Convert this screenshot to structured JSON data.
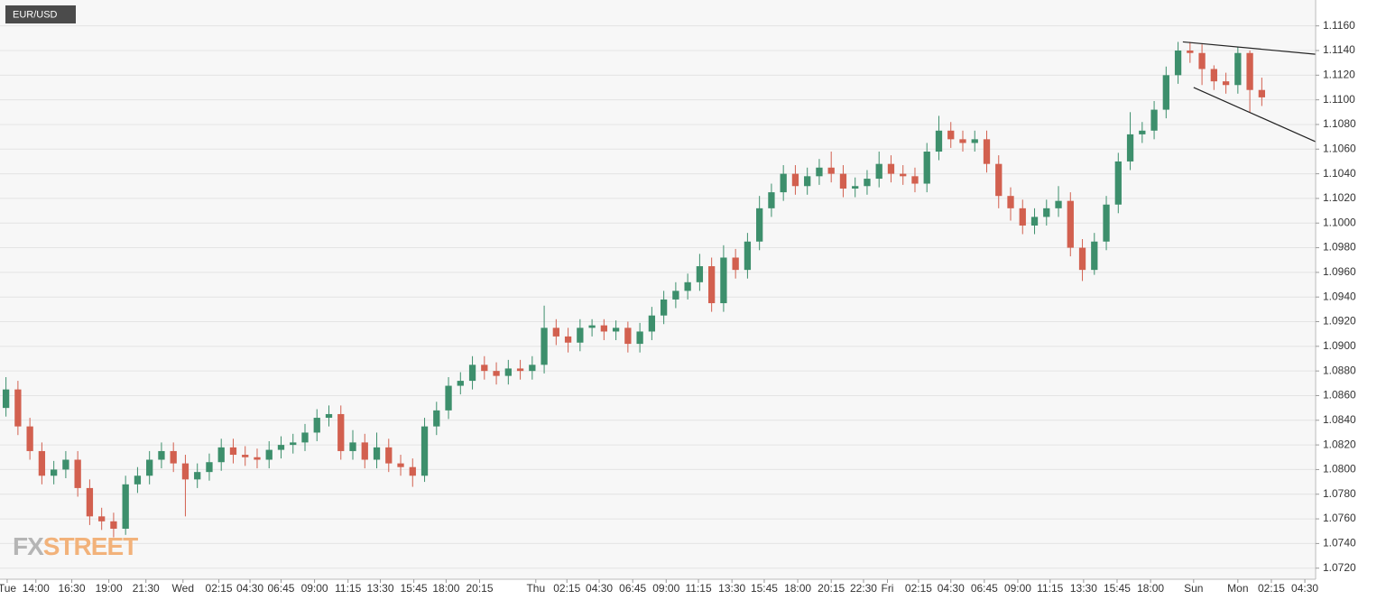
{
  "chart_data": {
    "type": "candlestick",
    "title": "EUR/USD",
    "watermark": {
      "prefix": "FX",
      "suffix": "STREET"
    },
    "up_color": "#3d8f6c",
    "down_color": "#d2604f",
    "open": [
      1.085,
      1.0865,
      1.0835,
      1.0815,
      1.0795,
      1.08,
      1.0808,
      1.0785,
      1.0762,
      1.0758,
      1.0752,
      1.0788,
      1.0795,
      1.0808,
      1.0815,
      1.0805,
      1.0792,
      1.0798,
      1.0806,
      1.0818,
      1.0812,
      1.081,
      1.0808,
      1.0816,
      1.082,
      1.0822,
      1.083,
      1.0842,
      1.0845,
      1.0815,
      1.0822,
      1.0808,
      1.0818,
      1.0805,
      1.0802,
      1.0795,
      1.0835,
      1.0848,
      1.0868,
      1.0872,
      1.0885,
      1.088,
      1.0876,
      1.0882,
      1.088,
      1.0885,
      1.0915,
      1.0908,
      1.0903,
      1.0915,
      1.0917,
      1.0912,
      1.0915,
      1.0902,
      1.0912,
      1.0925,
      1.0938,
      1.0945,
      1.0952,
      1.0965,
      1.0935,
      1.0972,
      1.0962,
      1.0985,
      1.1012,
      1.1025,
      1.104,
      1.103,
      1.1038,
      1.1045,
      1.104,
      1.1028,
      1.103,
      1.1036,
      1.1048,
      1.104,
      1.1038,
      1.1032,
      1.1058,
      1.1075,
      1.1068,
      1.1065,
      1.1068,
      1.1048,
      1.1022,
      1.1012,
      1.0998,
      1.1005,
      1.1012,
      1.1018,
      1.098,
      1.0962,
      1.0985,
      1.1015,
      1.105,
      1.1072,
      1.1075,
      1.1092,
      1.112,
      1.114,
      1.1138,
      1.1125,
      1.1115,
      1.1112,
      1.1138,
      1.1108
    ],
    "high": [
      1.0875,
      1.0872,
      1.0842,
      1.0822,
      1.0807,
      1.0815,
      1.0815,
      1.0792,
      1.0769,
      1.0765,
      1.0795,
      1.0802,
      1.0815,
      1.0822,
      1.0822,
      1.0812,
      1.0805,
      1.0813,
      1.0825,
      1.0825,
      1.0819,
      1.0817,
      1.0823,
      1.0827,
      1.0829,
      1.0837,
      1.0849,
      1.0852,
      1.0852,
      1.0832,
      1.0829,
      1.083,
      1.0825,
      1.0812,
      1.0809,
      1.0842,
      1.0855,
      1.0875,
      1.0879,
      1.0892,
      1.0892,
      1.0887,
      1.0889,
      1.0889,
      1.0892,
      1.0933,
      1.0922,
      1.0915,
      1.0922,
      1.0922,
      1.0922,
      1.0921,
      1.092,
      1.0919,
      1.0932,
      1.0945,
      1.0952,
      1.0959,
      1.0975,
      1.0972,
      1.0982,
      1.0979,
      1.0992,
      1.1022,
      1.1032,
      1.1047,
      1.1047,
      1.1045,
      1.1052,
      1.1058,
      1.1047,
      1.1037,
      1.1043,
      1.1058,
      1.1055,
      1.1047,
      1.1045,
      1.1065,
      1.1087,
      1.1082,
      1.1075,
      1.1075,
      1.1075,
      1.1055,
      1.1029,
      1.1019,
      1.1012,
      1.1019,
      1.103,
      1.1025,
      1.0987,
      1.0992,
      1.1022,
      1.1057,
      1.109,
      1.1082,
      1.1099,
      1.1127,
      1.1147,
      1.1147,
      1.1145,
      1.1128,
      1.1122,
      1.1143,
      1.114,
      1.1118
    ],
    "low": [
      1.0843,
      1.0828,
      1.0808,
      1.0788,
      1.0788,
      1.0793,
      1.0778,
      1.0755,
      1.0751,
      1.0745,
      1.0747,
      1.0781,
      1.0788,
      1.0801,
      1.0798,
      1.0762,
      1.0785,
      1.0791,
      1.0799,
      1.0805,
      1.0803,
      1.0801,
      1.0801,
      1.0809,
      1.0813,
      1.0815,
      1.0823,
      1.0835,
      1.0808,
      1.0808,
      1.0801,
      1.0801,
      1.0798,
      1.0795,
      1.0786,
      1.079,
      1.0828,
      1.0841,
      1.0861,
      1.0865,
      1.0873,
      1.0869,
      1.0869,
      1.0873,
      1.0873,
      1.0878,
      1.0901,
      1.0895,
      1.0896,
      1.0908,
      1.0905,
      1.0905,
      1.0895,
      1.0895,
      1.0905,
      1.0918,
      1.0931,
      1.0938,
      1.0945,
      1.0928,
      1.0928,
      1.0955,
      1.0955,
      1.0978,
      1.1005,
      1.1018,
      1.1023,
      1.1023,
      1.1031,
      1.1033,
      1.1021,
      1.1021,
      1.1023,
      1.1029,
      1.1033,
      1.1031,
      1.1025,
      1.1025,
      1.1051,
      1.1061,
      1.1058,
      1.1058,
      1.1041,
      1.1012,
      1.1002,
      1.0991,
      1.0991,
      1.0998,
      1.1005,
      1.0973,
      1.0953,
      1.0958,
      1.0978,
      1.1008,
      1.1043,
      1.1065,
      1.1068,
      1.1085,
      1.1113,
      1.113,
      1.1112,
      1.1108,
      1.1105,
      1.1105,
      1.109,
      1.1095
    ],
    "close": [
      1.0865,
      1.0835,
      1.0815,
      1.0795,
      1.08,
      1.0808,
      1.0785,
      1.0762,
      1.0758,
      1.0752,
      1.0788,
      1.0795,
      1.0808,
      1.0815,
      1.0805,
      1.0792,
      1.0798,
      1.0806,
      1.0818,
      1.0812,
      1.081,
      1.0808,
      1.0816,
      1.082,
      1.0822,
      1.083,
      1.0842,
      1.0845,
      1.0815,
      1.0822,
      1.0808,
      1.0818,
      1.0805,
      1.0802,
      1.0795,
      1.0835,
      1.0848,
      1.0868,
      1.0872,
      1.0885,
      1.088,
      1.0876,
      1.0882,
      1.088,
      1.0885,
      1.0915,
      1.0908,
      1.0903,
      1.0915,
      1.0917,
      1.0912,
      1.0915,
      1.0902,
      1.0912,
      1.0925,
      1.0938,
      1.0945,
      1.0952,
      1.0965,
      1.0935,
      1.0972,
      1.0962,
      1.0985,
      1.1012,
      1.1025,
      1.104,
      1.103,
      1.1038,
      1.1045,
      1.104,
      1.1028,
      1.103,
      1.1036,
      1.1048,
      1.104,
      1.1038,
      1.1032,
      1.1058,
      1.1075,
      1.1068,
      1.1065,
      1.1068,
      1.1048,
      1.1022,
      1.1012,
      1.0998,
      1.1005,
      1.1012,
      1.1018,
      1.098,
      1.0962,
      1.0985,
      1.1015,
      1.105,
      1.1072,
      1.1075,
      1.1092,
      1.112,
      1.114,
      1.1138,
      1.1125,
      1.1115,
      1.1112,
      1.1138,
      1.1108,
      1.1102
    ],
    "trendlines": [
      {
        "x": [
          98.4,
          109.5
        ],
        "y": [
          1.1147,
          1.1137
        ]
      },
      {
        "x": [
          99.3,
          109.5
        ],
        "y": [
          1.111,
          1.1066
        ]
      }
    ],
    "xlim": [
      -0.5,
      109.5
    ],
    "ylim": [
      1.0711,
      1.1181
    ],
    "grid": true,
    "xticks": [
      {
        "value": 0.1,
        "label": "Tue"
      },
      {
        "value": 2.5,
        "label": "14:00"
      },
      {
        "value": 5.5,
        "label": "16:30"
      },
      {
        "value": 8.6,
        "label": "19:00"
      },
      {
        "value": 11.7,
        "label": "21:30"
      },
      {
        "value": 14.8,
        "label": "Wed"
      },
      {
        "value": 17.8,
        "label": "02:15"
      },
      {
        "value": 20.4,
        "label": "04:30"
      },
      {
        "value": 23.0,
        "label": "06:45"
      },
      {
        "value": 25.8,
        "label": "09:00"
      },
      {
        "value": 28.6,
        "label": "11:15"
      },
      {
        "value": 31.3,
        "label": "13:30"
      },
      {
        "value": 34.1,
        "label": "15:45"
      },
      {
        "value": 36.8,
        "label": "18:00"
      },
      {
        "value": 39.6,
        "label": "20:15"
      },
      {
        "value": 44.3,
        "label": "Thu"
      },
      {
        "value": 46.9,
        "label": "02:15"
      },
      {
        "value": 49.6,
        "label": "04:30"
      },
      {
        "value": 52.4,
        "label": "06:45"
      },
      {
        "value": 55.2,
        "label": "09:00"
      },
      {
        "value": 57.9,
        "label": "11:15"
      },
      {
        "value": 60.7,
        "label": "13:30"
      },
      {
        "value": 63.4,
        "label": "15:45"
      },
      {
        "value": 66.2,
        "label": "18:00"
      },
      {
        "value": 69.0,
        "label": "20:15"
      },
      {
        "value": 71.7,
        "label": "22:30"
      },
      {
        "value": 73.7,
        "label": "Fri"
      },
      {
        "value": 76.3,
        "label": "02:15"
      },
      {
        "value": 79.0,
        "label": "04:30"
      },
      {
        "value": 81.8,
        "label": "06:45"
      },
      {
        "value": 84.6,
        "label": "09:00"
      },
      {
        "value": 87.3,
        "label": "11:15"
      },
      {
        "value": 90.1,
        "label": "13:30"
      },
      {
        "value": 92.9,
        "label": "15:45"
      },
      {
        "value": 95.7,
        "label": "18:00"
      },
      {
        "value": 99.3,
        "label": "Sun"
      },
      {
        "value": 103.0,
        "label": "Mon"
      },
      {
        "value": 105.8,
        "label": "02:15"
      },
      {
        "value": 108.6,
        "label": "04:30"
      }
    ],
    "yticks": [
      {
        "value": 1.072,
        "label": "1.0720"
      },
      {
        "value": 1.074,
        "label": "1.0740"
      },
      {
        "value": 1.076,
        "label": "1.0760"
      },
      {
        "value": 1.078,
        "label": "1.0780"
      },
      {
        "value": 1.08,
        "label": "1.0800"
      },
      {
        "value": 1.082,
        "label": "1.0820"
      },
      {
        "value": 1.084,
        "label": "1.0840"
      },
      {
        "value": 1.086,
        "label": "1.0860"
      },
      {
        "value": 1.088,
        "label": "1.0880"
      },
      {
        "value": 1.09,
        "label": "1.0900"
      },
      {
        "value": 1.092,
        "label": "1.0920"
      },
      {
        "value": 1.094,
        "label": "1.0940"
      },
      {
        "value": 1.096,
        "label": "1.0960"
      },
      {
        "value": 1.098,
        "label": "1.0980"
      },
      {
        "value": 1.1,
        "label": "1.1000"
      },
      {
        "value": 1.102,
        "label": "1.1020"
      },
      {
        "value": 1.104,
        "label": "1.1040"
      },
      {
        "value": 1.106,
        "label": "1.1060"
      },
      {
        "value": 1.108,
        "label": "1.1080"
      },
      {
        "value": 1.11,
        "label": "1.1100"
      },
      {
        "value": 1.112,
        "label": "1.1120"
      },
      {
        "value": 1.114,
        "label": "1.1140"
      },
      {
        "value": 1.116,
        "label": "1.1160"
      }
    ]
  }
}
